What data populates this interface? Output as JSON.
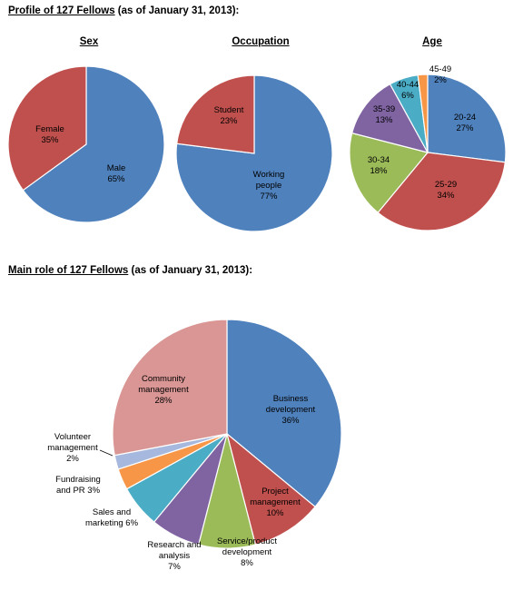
{
  "headings": {
    "profile_title": "Profile of 127 Fellows",
    "profile_date": "(as of January 31, 2013):",
    "role_title": "Main role of 127 Fellows",
    "role_date": "(as of January 31, 2013):"
  },
  "colors": {
    "blue": "#4f81bd",
    "red": "#c0504d",
    "green": "#9bbb59",
    "purple": "#8064a2",
    "teal": "#4bacc6",
    "orange": "#f79646",
    "light_blue": "#a6b8dd",
    "pink": "#d99694"
  },
  "chart_data": [
    {
      "type": "pie",
      "title": "Sex",
      "slices": [
        {
          "label": "Male",
          "value": 65,
          "text": "65%",
          "color": "#4f81bd"
        },
        {
          "label": "Female",
          "value": 35,
          "text": "35%",
          "color": "#c0504d"
        }
      ]
    },
    {
      "type": "pie",
      "title": "Occupation",
      "slices": [
        {
          "label": "Working people",
          "value": 77,
          "text": "77%",
          "color": "#4f81bd"
        },
        {
          "label": "Student",
          "value": 23,
          "text": "23%",
          "color": "#c0504d"
        }
      ]
    },
    {
      "type": "pie",
      "title": "Age",
      "slices": [
        {
          "label": "20-24",
          "value": 27,
          "text": "27%",
          "color": "#4f81bd"
        },
        {
          "label": "25-29",
          "value": 34,
          "text": "34%",
          "color": "#c0504d"
        },
        {
          "label": "30-34",
          "value": 18,
          "text": "18%",
          "color": "#9bbb59"
        },
        {
          "label": "35-39",
          "value": 13,
          "text": "13%",
          "color": "#8064a2"
        },
        {
          "label": "40-44",
          "value": 6,
          "text": "6%",
          "color": "#4bacc6"
        },
        {
          "label": "45-49",
          "value": 2,
          "text": "2%",
          "color": "#f79646"
        }
      ]
    },
    {
      "type": "pie",
      "title": "",
      "slices": [
        {
          "label": "Business development",
          "value": 36,
          "text": "36%",
          "color": "#4f81bd"
        },
        {
          "label": "Project management",
          "value": 10,
          "text": "10%",
          "color": "#c0504d"
        },
        {
          "label": "Service/product development",
          "value": 8,
          "text": "8%",
          "color": "#9bbb59"
        },
        {
          "label": "Research and analysis",
          "value": 7,
          "text": "7%",
          "color": "#8064a2"
        },
        {
          "label": "Sales and marketing",
          "value": 6,
          "text": "6%",
          "color": "#4bacc6"
        },
        {
          "label": "Fundraising and PR",
          "value": 3,
          "text": "3%",
          "color": "#f79646"
        },
        {
          "label": "Volunteer management",
          "value": 2,
          "text": "2%",
          "color": "#a6b8dd"
        },
        {
          "label": "Community management",
          "value": 28,
          "text": "28%",
          "color": "#d99694"
        }
      ]
    }
  ]
}
